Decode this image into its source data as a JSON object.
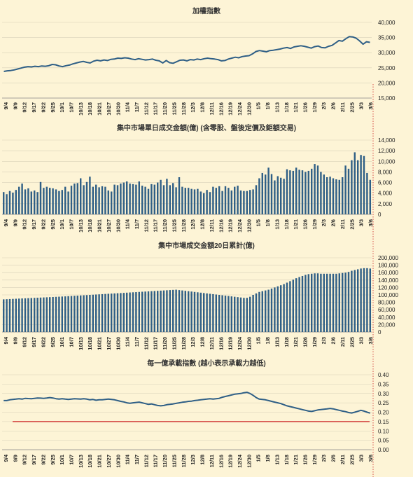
{
  "chart_data": [
    {
      "type": "line",
      "title": "加權指數",
      "ylim": [
        15000,
        40000
      ],
      "yticks": [
        15000,
        20000,
        25000,
        30000,
        35000,
        40000
      ],
      "x_labels": [
        "9/4",
        "9/9",
        "9/12",
        "9/17",
        "9/22",
        "9/25",
        "10/1",
        "10/7",
        "10/13",
        "10/18",
        "10/21",
        "10/27",
        "10/30",
        "11/4",
        "11/7",
        "11/12",
        "11/17",
        "11/20",
        "11/25",
        "11/28",
        "12/3",
        "12/8",
        "12/11",
        "12/16",
        "12/19",
        "12/24",
        "12/30",
        "1/5",
        "1/8",
        "1/13",
        "1/18",
        "1/21",
        "1/26",
        "1/29",
        "2/3",
        "2/6",
        "2/11",
        "2/25",
        "3/3",
        "3/6"
      ],
      "series": [
        {
          "color": "#2f5f86",
          "values": [
            23800,
            24000,
            24100,
            24300,
            24600,
            24900,
            25200,
            25400,
            25300,
            25500,
            25400,
            25600,
            25500,
            25700,
            26100,
            26000,
            25600,
            25400,
            25700,
            25900,
            26300,
            26600,
            26900,
            27100,
            26800,
            26600,
            27200,
            27500,
            27300,
            27600,
            27400,
            27800,
            27900,
            28200,
            28100,
            28300,
            28200,
            27900,
            27700,
            28000,
            27800,
            27600,
            27700,
            27900,
            27500,
            27300,
            26600,
            27400,
            26700,
            26500,
            27000,
            27500,
            27600,
            27300,
            27700,
            27600,
            27900,
            27700,
            28000,
            28200,
            28000,
            27900,
            27700,
            27300,
            27400,
            27900,
            28200,
            28500,
            28300,
            28700,
            28900,
            29000,
            29600,
            30400,
            30700,
            30500,
            30300,
            30700,
            30800,
            31000,
            31200,
            31500,
            31700,
            31400,
            31900,
            32100,
            32300,
            32100,
            31800,
            31500,
            32000,
            32200,
            31700,
            31600,
            32100,
            32400,
            33200,
            34000,
            33800,
            34600,
            35300,
            35200,
            34800,
            33900,
            32800,
            33600,
            33400
          ]
        }
      ]
    },
    {
      "type": "bar",
      "title": "集中市場單日成交金額(億) (含零股、盤後定價及鉅額交易)",
      "ylim": [
        0,
        14000
      ],
      "yticks": [
        0,
        2000,
        4000,
        6000,
        8000,
        10000,
        12000,
        14000
      ],
      "x_labels": [
        "9/4",
        "9/9",
        "9/12",
        "9/17",
        "9/22",
        "9/25",
        "10/1",
        "10/7",
        "10/13",
        "10/18",
        "10/21",
        "10/27",
        "10/30",
        "11/4",
        "11/7",
        "11/12",
        "11/17",
        "11/20",
        "11/25",
        "11/28",
        "12/3",
        "12/8",
        "12/11",
        "12/16",
        "12/19",
        "12/24",
        "12/30",
        "1/5",
        "1/8",
        "1/13",
        "1/18",
        "1/21",
        "1/26",
        "1/29",
        "2/3",
        "2/6",
        "2/11",
        "2/25",
        "3/3",
        "3/6"
      ],
      "series": [
        {
          "color": "#2f5f86",
          "values": [
            4200,
            3800,
            4400,
            4100,
            4600,
            5200,
            5800,
            4700,
            4900,
            4300,
            4500,
            4200,
            6100,
            5000,
            5200,
            5000,
            4900,
            4700,
            4400,
            4600,
            5200,
            4300,
            5400,
            5800,
            5900,
            6800,
            5500,
            6100,
            7100,
            5200,
            5600,
            5100,
            5300,
            5200,
            4500,
            4300,
            5600,
            5500,
            5800,
            6000,
            6200,
            5800,
            5700,
            5600,
            6200,
            5400,
            5200,
            4800,
            5700,
            5600,
            6000,
            6500,
            5500,
            6700,
            5500,
            5900,
            5100,
            7000,
            5200,
            5000,
            5000,
            4800,
            4700,
            4800,
            4300,
            4000,
            4600,
            4200,
            5200,
            5000,
            5300,
            4400,
            5300,
            5000,
            4500,
            5200,
            5400,
            4500,
            4400,
            4400,
            4600,
            4700,
            5500,
            6800,
            7800,
            7500,
            8800,
            7600,
            6400,
            7200,
            6900,
            6700,
            8500,
            8300,
            8200,
            8800,
            8400,
            8300,
            8000,
            8200,
            8600,
            9500,
            9200,
            8000,
            7500,
            7000,
            7100,
            6800,
            6600,
            6500,
            7000,
            9200,
            8600,
            10200,
            11700,
            10200,
            11200,
            11000,
            7800,
            6500
          ]
        }
      ]
    },
    {
      "type": "bar",
      "title": "集中市場成交金額20日累計(億)",
      "ylim": [
        0,
        200000
      ],
      "yticks": [
        0,
        20000,
        40000,
        60000,
        80000,
        100000,
        120000,
        140000,
        160000,
        180000,
        200000
      ],
      "x_labels": [
        "9/4",
        "9/9",
        "9/12",
        "9/17",
        "9/22",
        "9/25",
        "10/1",
        "10/7",
        "10/13",
        "10/18",
        "10/21",
        "10/27",
        "10/30",
        "11/4",
        "11/7",
        "11/12",
        "11/17",
        "11/20",
        "11/25",
        "11/28",
        "12/3",
        "12/8",
        "12/11",
        "12/16",
        "12/19",
        "12/24",
        "12/30",
        "1/5",
        "1/8",
        "1/13",
        "1/18",
        "1/21",
        "1/26",
        "1/29",
        "2/3",
        "2/6",
        "2/11",
        "2/25",
        "3/3",
        "3/6"
      ],
      "series": [
        {
          "color": "#2f5f86",
          "values": [
            88000,
            88400,
            88800,
            89200,
            89600,
            90000,
            90400,
            90800,
            91200,
            91600,
            92000,
            92400,
            92800,
            93200,
            93600,
            94000,
            94400,
            94800,
            95200,
            95600,
            96000,
            96500,
            97000,
            97500,
            98000,
            98500,
            99000,
            99500,
            100000,
            100500,
            101000,
            101500,
            102000,
            102500,
            103000,
            103500,
            104000,
            104500,
            105000,
            105500,
            106000,
            106500,
            107000,
            107500,
            108000,
            108500,
            109000,
            109500,
            110000,
            110500,
            111000,
            111500,
            112000,
            112500,
            113000,
            113500,
            114000,
            113000,
            112000,
            111000,
            110000,
            109000,
            108000,
            107000,
            106000,
            105000,
            104000,
            103000,
            102000,
            101000,
            100000,
            99000,
            98000,
            97000,
            96000,
            95000,
            94000,
            93000,
            92000,
            92000,
            95000,
            100000,
            104000,
            108000,
            110000,
            112000,
            114000,
            117000,
            120000,
            123000,
            126000,
            129000,
            133000,
            137000,
            141000,
            145000,
            148000,
            151000,
            154000,
            156000,
            157000,
            158000,
            158000,
            157000,
            157000,
            157000,
            157000,
            157000,
            157000,
            158000,
            159000,
            160000,
            162000,
            165000,
            167000,
            169000,
            171000,
            172000,
            172000,
            171000
          ]
        }
      ]
    },
    {
      "type": "line",
      "title": "每一億承載指數 (越小表示承載力越低)",
      "ylim": [
        0,
        0.4
      ],
      "yticks": [
        0.0,
        0.05,
        0.1,
        0.15,
        0.2,
        0.25,
        0.3,
        0.35,
        0.4
      ],
      "x_labels": [
        "9/4",
        "9/9",
        "9/12",
        "9/17",
        "9/22",
        "9/25",
        "10/1",
        "10/7",
        "10/13",
        "10/18",
        "10/21",
        "10/27",
        "10/30",
        "11/4",
        "11/7",
        "11/12",
        "11/17",
        "11/20",
        "11/25",
        "11/28",
        "12/3",
        "12/8",
        "12/11",
        "12/16",
        "12/19",
        "12/24",
        "12/30",
        "1/5",
        "1/8",
        "1/13",
        "1/18",
        "1/21",
        "1/26",
        "1/29",
        "2/3",
        "2/6",
        "2/11",
        "2/25",
        "3/3",
        "3/6"
      ],
      "reference_line": {
        "value": 0.15,
        "color": "#cc2222"
      },
      "series": [
        {
          "color": "#2f5f86",
          "values": [
            0.262,
            0.262,
            0.266,
            0.268,
            0.27,
            0.272,
            0.27,
            0.274,
            0.273,
            0.272,
            0.274,
            0.276,
            0.275,
            0.274,
            0.276,
            0.278,
            0.276,
            0.272,
            0.27,
            0.272,
            0.27,
            0.268,
            0.27,
            0.272,
            0.271,
            0.27,
            0.272,
            0.27,
            0.266,
            0.268,
            0.264,
            0.266,
            0.266,
            0.268,
            0.27,
            0.268,
            0.266,
            0.262,
            0.258,
            0.255,
            0.25,
            0.248,
            0.25,
            0.252,
            0.254,
            0.25,
            0.246,
            0.242,
            0.244,
            0.24,
            0.236,
            0.234,
            0.236,
            0.24,
            0.242,
            0.244,
            0.247,
            0.25,
            0.253,
            0.255,
            0.258,
            0.259,
            0.262,
            0.264,
            0.266,
            0.268,
            0.27,
            0.272,
            0.27,
            0.272,
            0.274,
            0.28,
            0.284,
            0.288,
            0.292,
            0.296,
            0.298,
            0.3,
            0.304,
            0.306,
            0.3,
            0.29,
            0.278,
            0.27,
            0.268,
            0.266,
            0.262,
            0.258,
            0.254,
            0.25,
            0.246,
            0.24,
            0.234,
            0.23,
            0.226,
            0.222,
            0.218,
            0.214,
            0.21,
            0.206,
            0.204,
            0.208,
            0.212,
            0.214,
            0.216,
            0.218,
            0.22,
            0.218,
            0.214,
            0.21,
            0.206,
            0.203,
            0.198,
            0.196,
            0.2,
            0.205,
            0.21,
            0.206,
            0.2,
            0.195
          ]
        }
      ]
    }
  ]
}
